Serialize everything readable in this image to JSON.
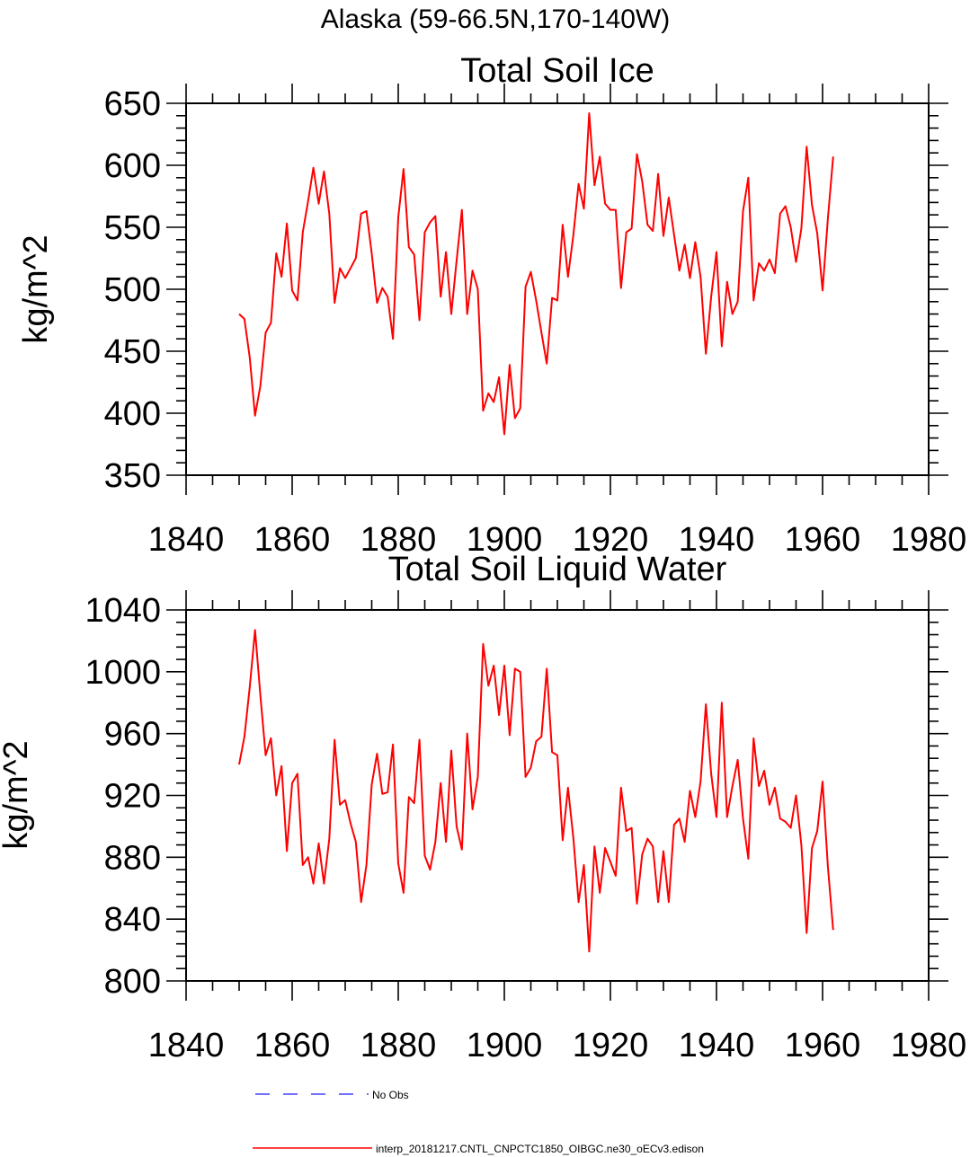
{
  "figure": {
    "suptitle": "Alaska (59-66.5N,170-140W)"
  },
  "colors": {
    "model_line": "#ff0000",
    "obs_line": "#4040ff",
    "axis": "#000000"
  },
  "legend": [
    {
      "label": "No Obs",
      "style": "dashed",
      "color": "#4040ff"
    },
    {
      "label": "interp_20181217.CNTL_CNPCTC1850_OIBGC.ne30_oECv3.edison",
      "style": "solid",
      "color": "#ff0000"
    }
  ],
  "chart_data": [
    {
      "type": "line",
      "title": "Total Soil Ice",
      "xlabel": "",
      "ylabel": "kg/m^2",
      "xlim": [
        1840,
        1980
      ],
      "ylim": [
        350,
        650
      ],
      "xticks": [
        1840,
        1860,
        1880,
        1900,
        1920,
        1940,
        1960,
        1980
      ],
      "yticks": [
        350,
        400,
        450,
        500,
        550,
        600,
        650
      ],
      "x_start": 1850,
      "series": [
        {
          "name": "interp_20181217.CNTL_CNPCTC1850_OIBGC.ne30_oECv3.edison",
          "color": "#ff0000",
          "values": [
            480,
            476,
            445,
            398,
            422,
            465,
            473,
            529,
            510,
            553,
            499,
            491,
            546,
            571,
            598,
            569,
            595,
            561,
            489,
            517,
            509,
            517,
            525,
            561,
            563,
            529,
            489,
            501,
            494,
            460,
            558,
            597,
            534,
            528,
            475,
            546,
            554,
            559,
            494,
            530,
            480,
            523,
            564,
            480,
            515,
            500,
            402,
            416,
            409,
            429,
            383,
            439,
            396,
            404,
            502,
            514,
            491,
            465,
            440,
            493,
            491,
            552,
            510,
            543,
            585,
            565,
            642,
            584,
            607,
            569,
            564,
            564,
            501,
            546,
            549,
            609,
            587,
            552,
            547,
            593,
            543,
            574,
            544,
            515,
            536,
            509,
            538,
            510,
            448,
            494,
            530,
            454,
            506,
            480,
            490,
            563,
            590,
            491,
            521,
            515,
            524,
            513,
            561,
            567,
            550,
            522,
            549,
            615,
            568,
            545,
            499,
            557,
            607
          ]
        }
      ]
    },
    {
      "type": "line",
      "title": "Total Soil Liquid Water",
      "xlabel": "",
      "ylabel": "kg/m^2",
      "xlim": [
        1840,
        1980
      ],
      "ylim": [
        800,
        1040
      ],
      "xticks": [
        1840,
        1860,
        1880,
        1900,
        1920,
        1940,
        1960,
        1980
      ],
      "yticks": [
        800,
        840,
        880,
        920,
        960,
        1000,
        1040
      ],
      "x_start": 1850,
      "series": [
        {
          "name": "interp_20181217.CNTL_CNPCTC1850_OIBGC.ne30_oECv3.edison",
          "color": "#ff0000",
          "values": [
            940,
            958,
            990,
            1027,
            985,
            946,
            957,
            920,
            939,
            884,
            928,
            934,
            875,
            880,
            863,
            889,
            863,
            892,
            956,
            914,
            917,
            902,
            890,
            851,
            875,
            927,
            947,
            921,
            922,
            953,
            876,
            857,
            919,
            915,
            956,
            881,
            872,
            890,
            928,
            890,
            949,
            900,
            885,
            960,
            911,
            932,
            1018,
            991,
            1004,
            972,
            1004,
            959,
            1002,
            1000,
            932,
            938,
            955,
            958,
            1002,
            948,
            946,
            891,
            925,
            893,
            851,
            875,
            819,
            887,
            857,
            886,
            877,
            868,
            925,
            897,
            899,
            850,
            882,
            892,
            887,
            851,
            884,
            851,
            901,
            905,
            890,
            923,
            906,
            929,
            979,
            934,
            906,
            980,
            906,
            926,
            943,
            905,
            879,
            957,
            926,
            936,
            914,
            925,
            905,
            903,
            899,
            920,
            888,
            831,
            886,
            897,
            929,
            874,
            833
          ]
        }
      ]
    }
  ]
}
